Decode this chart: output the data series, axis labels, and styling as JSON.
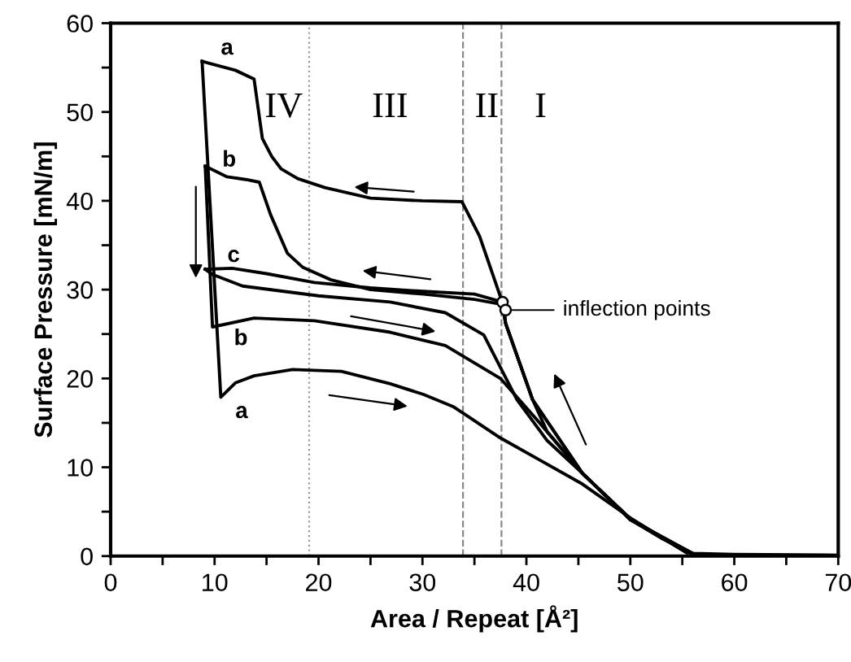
{
  "chart_data": {
    "type": "line",
    "xlabel": "Area / Repeat [Å²]",
    "ylabel": "Surface Pressure [mN/m]",
    "xlim": [
      0,
      70
    ],
    "ylim": [
      0,
      60
    ],
    "xticks": [
      0,
      {
        "value": 5,
        "label": null
      },
      10,
      {
        "value": 15,
        "label": null
      },
      20,
      {
        "value": 25,
        "label": null
      },
      30,
      {
        "value": 35,
        "label": null
      },
      40,
      {
        "value": 45,
        "label": null
      },
      50,
      {
        "value": 55,
        "label": null
      },
      60,
      {
        "value": 65,
        "label": null
      },
      70
    ],
    "yticks": [
      0,
      {
        "value": 5,
        "label": null
      },
      10,
      {
        "value": 15,
        "label": null
      },
      20,
      {
        "value": 25,
        "label": null
      },
      30,
      {
        "value": 35,
        "label": null
      },
      40,
      {
        "value": 45,
        "label": null
      },
      50,
      {
        "value": 55,
        "label": null
      },
      60
    ],
    "grid": false,
    "marker": "none",
    "line_style": "solid",
    "series": [
      {
        "color": "#000000",
        "x": [
          70,
          60,
          56,
          53,
          50,
          45.4,
          42,
          40.6,
          38,
          37.5,
          35.5,
          33.8,
          30,
          25,
          20.6,
          18,
          16.4,
          15.5,
          14.6,
          13.8,
          12,
          8.8
        ],
        "values": [
          0.1,
          0.2,
          0.3,
          2,
          4.1,
          9.3,
          14,
          17.6,
          26.2,
          29.2,
          36,
          39.9,
          40,
          40.3,
          41.5,
          42.5,
          43.6,
          45,
          47,
          53.7,
          54.7,
          55.7
        ]
      },
      {
        "color": "#000000",
        "x": [
          8.8,
          10.6,
          12,
          13.8,
          17.5,
          22.2,
          26.9,
          30.1,
          33,
          37.5,
          41,
          45.4,
          50,
          55.4,
          56.5
        ],
        "values": [
          55.7,
          17.9,
          19.5,
          20.3,
          21,
          20.8,
          19.4,
          18.2,
          16.8,
          13.3,
          11,
          8.1,
          4.3,
          0.4,
          0.2
        ]
      },
      {
        "color": "#000000",
        "x": [
          56,
          50,
          45.4,
          40.6,
          38,
          37.8,
          35,
          30.1,
          25,
          21.2,
          18.5,
          17,
          15.4,
          14.3,
          13,
          11.2,
          9.1
        ],
        "values": [
          0.3,
          4.1,
          9.3,
          17.6,
          26.2,
          28.3,
          28.9,
          29.5,
          30,
          31.1,
          32.5,
          34.1,
          38.4,
          42.1,
          42.4,
          42.7,
          43.9
        ]
      },
      {
        "color": "#000000",
        "x": [
          9.1,
          9.8,
          13.8,
          19.6,
          26.9,
          32.2,
          37.5,
          41.2,
          45.4,
          50,
          55.4
        ],
        "values": [
          43.9,
          25.8,
          26.8,
          26.5,
          25.2,
          23.7,
          20,
          15.1,
          9.3,
          4.2,
          0.4
        ]
      },
      {
        "color": "#000000",
        "x": [
          56,
          50,
          45.4,
          40.6,
          38,
          37.7,
          35,
          30.1,
          25,
          19.6,
          15,
          11.7,
          9.1
        ],
        "values": [
          0.3,
          4.1,
          9.3,
          17.6,
          26.2,
          28.6,
          29.5,
          29.8,
          30.2,
          30.8,
          31.8,
          32.4,
          32.3
        ]
      },
      {
        "color": "#000000",
        "x": [
          9.1,
          9.8,
          12.7,
          20,
          26.9,
          32.2,
          35.9,
          39.1,
          42,
          45.4,
          50,
          55.4
        ],
        "values": [
          32.3,
          31.7,
          30.4,
          29.3,
          28.6,
          27.4,
          24.9,
          17.6,
          13,
          9.3,
          4.2,
          0.4
        ]
      },
      {
        "type": "scatter",
        "color": "#000000",
        "marker": "circle",
        "x": [
          37.7,
          38.0
        ],
        "values": [
          28.6,
          27.7
        ]
      }
    ],
    "ref_lines": [
      {
        "axis": "x",
        "value": 19.1,
        "color": "#999999",
        "line_style": "dotted"
      },
      {
        "axis": "x",
        "value": 33.9,
        "color": "#888888",
        "line_style": "dashed"
      },
      {
        "axis": "x",
        "value": 37.6,
        "color": "#888888",
        "line_style": "dashed"
      }
    ],
    "annotations": [
      "IV",
      "III",
      "II",
      "I",
      "a",
      "b",
      "c",
      "b",
      "a",
      {
        "text": "inflection points",
        "x": 38.0,
        "y": 27.7
      }
    ]
  }
}
